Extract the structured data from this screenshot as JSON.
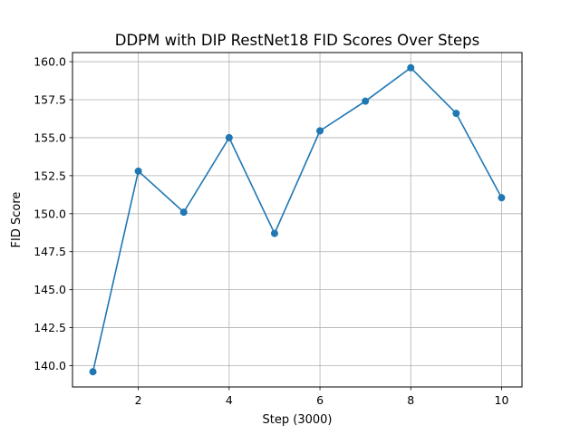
{
  "chart_data": {
    "type": "line",
    "title": "DDPM with DIP RestNet18 FID Scores Over Steps",
    "xlabel": "Step (3000)",
    "ylabel": "FID Score",
    "x": [
      1,
      2,
      3,
      4,
      5,
      6,
      7,
      8,
      9,
      10
    ],
    "series": [
      {
        "values": [
          139.6,
          152.8,
          150.1,
          155.0,
          148.7,
          155.45,
          157.4,
          159.6,
          156.6,
          151.05
        ]
      }
    ],
    "xlim": [
      0.55,
      10.45
    ],
    "ylim": [
      138.6,
      160.6
    ],
    "xticks": [
      "2",
      "4",
      "6",
      "8",
      "10"
    ],
    "yticks": [
      "140.0",
      "142.5",
      "145.0",
      "147.5",
      "150.0",
      "152.5",
      "155.0",
      "157.5",
      "160.0"
    ],
    "grid": true,
    "line_color": "#1f77b4",
    "marker": "circle"
  }
}
